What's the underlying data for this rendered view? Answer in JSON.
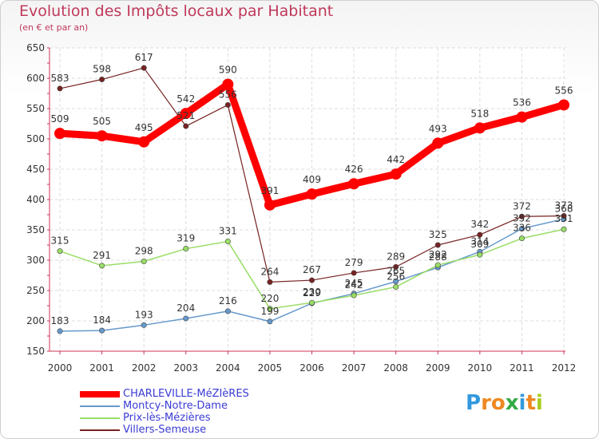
{
  "chart_data": {
    "type": "line",
    "title": "Evolution des Impôts locaux par Habitant",
    "subtitle": "(en € et par an)",
    "xlabel": "",
    "ylabel": "",
    "ylim": [
      150,
      650
    ],
    "y_ticks": [
      "150",
      "200",
      "250",
      "300",
      "350",
      "400",
      "450",
      "500",
      "550",
      "600",
      "650"
    ],
    "categories": [
      "2000",
      "2001",
      "2002",
      "2003",
      "2004",
      "2005",
      "2006",
      "2007",
      "2008",
      "2009",
      "2010",
      "2011",
      "2012"
    ],
    "series": [
      {
        "name": "CHARLEVILLE-MéZIèRES",
        "color": "#ff0000",
        "values": [
          509,
          505,
          495,
          542,
          590,
          391,
          409,
          426,
          442,
          493,
          518,
          536,
          556
        ]
      },
      {
        "name": "Montcy-Notre-Dame",
        "color": "#6699cc",
        "values": [
          183,
          184,
          193,
          204,
          216,
          199,
          229,
          245,
          265,
          288,
          314,
          352,
          368
        ]
      },
      {
        "name": "Prix-lès-Mézières",
        "color": "#99dd66",
        "values": [
          315,
          291,
          298,
          319,
          331,
          220,
          230,
          242,
          256,
          292,
          309,
          336,
          351
        ]
      },
      {
        "name": "Villers-Semeuse",
        "color": "#772222",
        "values": [
          583,
          598,
          617,
          521,
          556,
          264,
          267,
          279,
          289,
          325,
          342,
          372,
          373
        ]
      }
    ],
    "labels": {
      "CHARLEVILLE-MéZIèRES": [
        "509",
        "505",
        "495",
        "542",
        "590",
        "391",
        "409",
        "426",
        "442",
        "493",
        "518",
        "536",
        "556"
      ],
      "Montcy-Notre-Dame": [
        "183",
        "184",
        "193",
        "204",
        "216",
        "199",
        "229",
        "245",
        "265",
        "288",
        "314",
        "352",
        "368"
      ],
      "Prix-lès-Mézières": [
        "315",
        "291",
        "298",
        "319",
        "331",
        "220",
        "230",
        "242",
        "256",
        "292",
        "309",
        "336",
        "351"
      ],
      "Villers-Semeuse": [
        "583",
        "598",
        "617",
        "521",
        "556",
        "264",
        "267",
        "279",
        "289",
        "325",
        "342",
        "372",
        "373"
      ]
    },
    "legend_position": "bottom-left"
  },
  "logo": {
    "text": "Proxiti",
    "letters": [
      "P",
      "r",
      "o",
      "x",
      "i",
      "t",
      "i"
    ],
    "colors": [
      "#3399dd",
      "#ee8822",
      "#ee8822",
      "#33aa44",
      "#3399dd",
      "#ee8822",
      "#aacc22"
    ]
  }
}
